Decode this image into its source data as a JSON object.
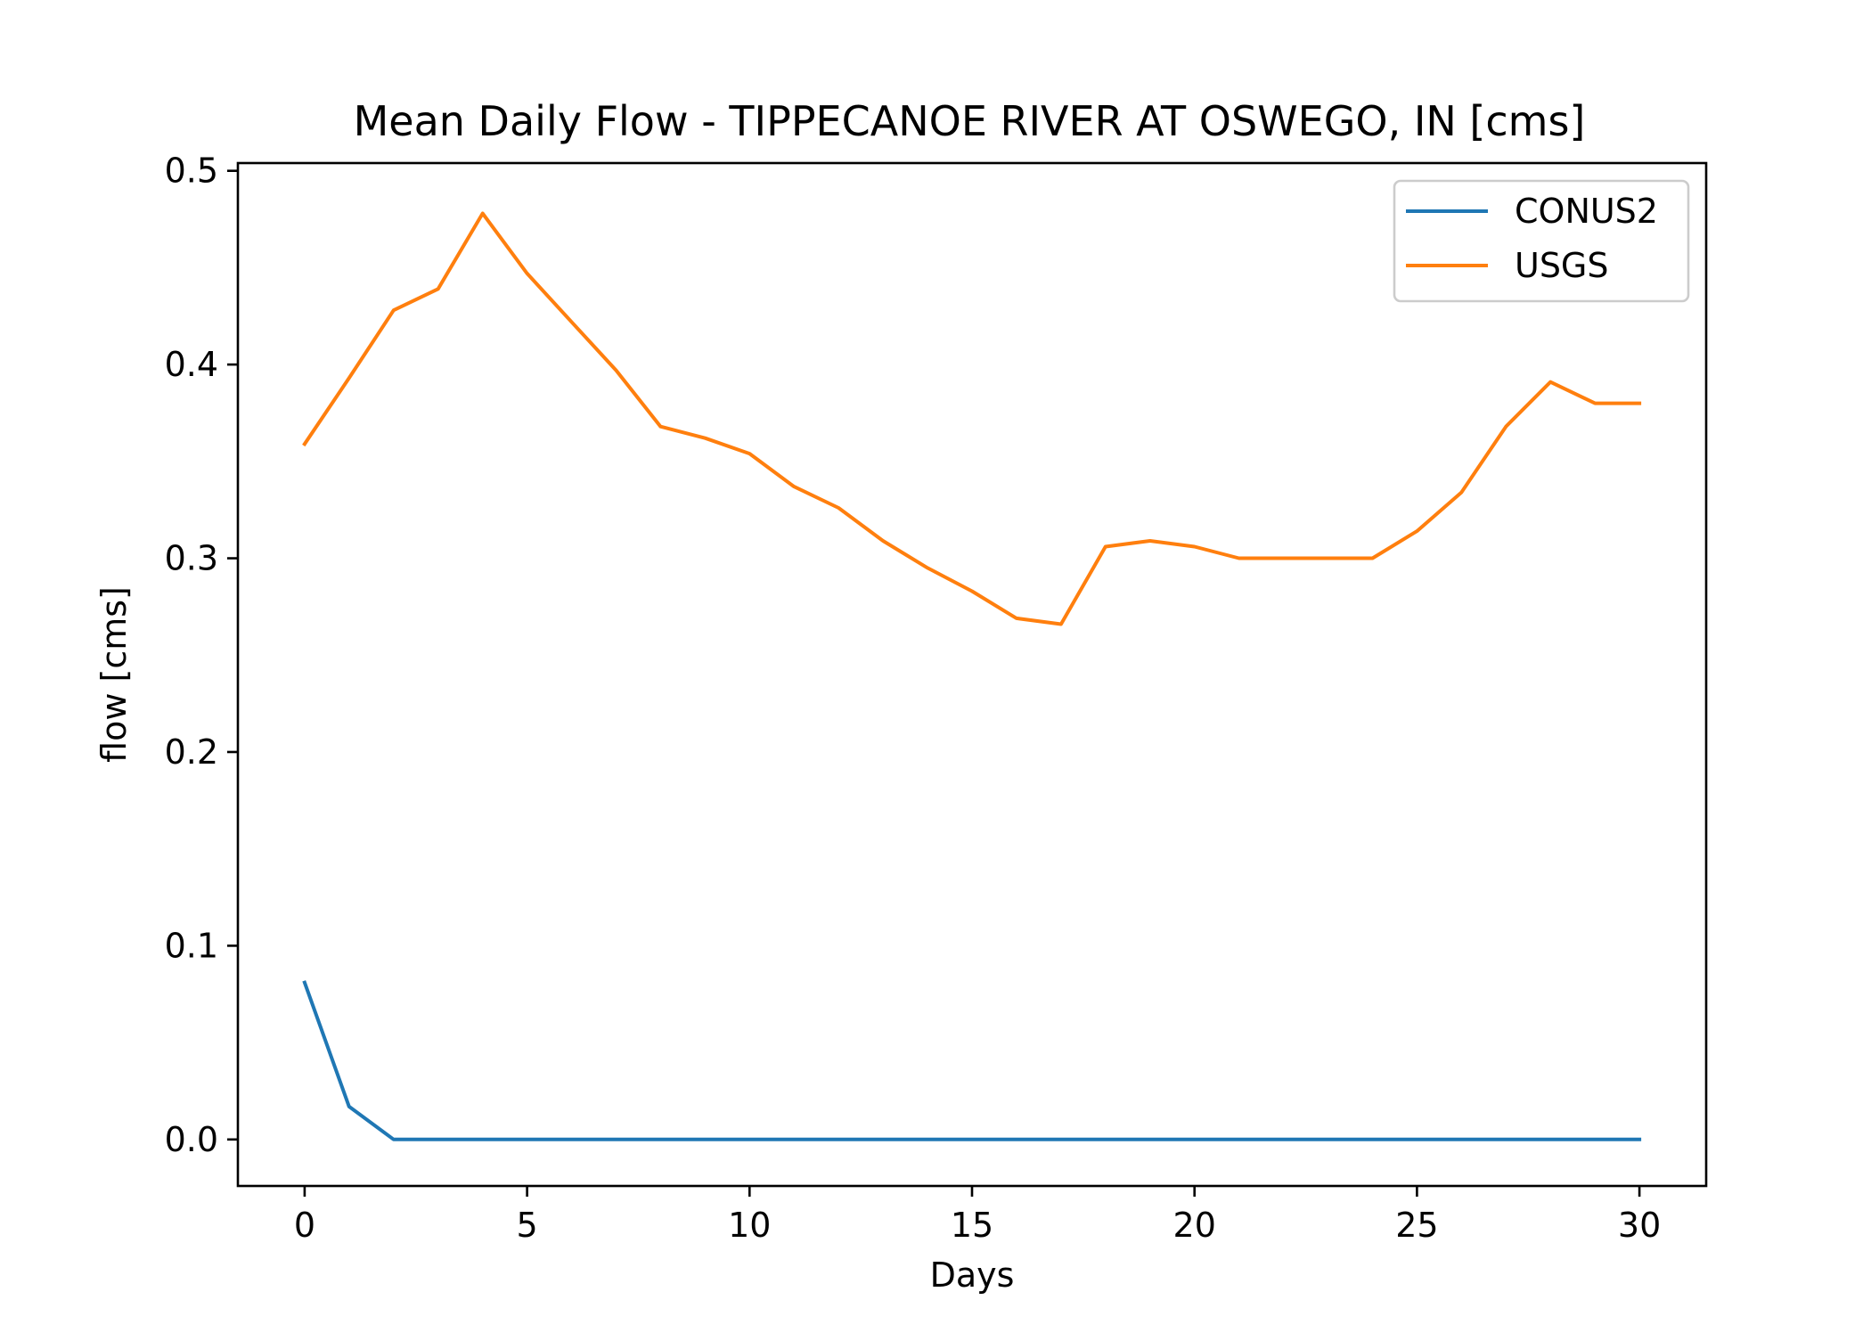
{
  "chart_data": {
    "type": "line",
    "title": "Mean Daily Flow - TIPPECANOE RIVER AT OSWEGO, IN [cms]",
    "xlabel": "Days",
    "ylabel": "flow [cms]",
    "xlim": [
      -1.5,
      31.5
    ],
    "ylim": [
      -0.024,
      0.504
    ],
    "xticks": [
      0,
      5,
      10,
      15,
      20,
      25,
      30
    ],
    "xtick_labels": [
      "0",
      "5",
      "10",
      "15",
      "20",
      "25",
      "30"
    ],
    "yticks": [
      0.0,
      0.1,
      0.2,
      0.3,
      0.4,
      0.5
    ],
    "ytick_labels": [
      "0.0",
      "0.1",
      "0.2",
      "0.3",
      "0.4",
      "0.5"
    ],
    "grid": false,
    "legend": "top-right",
    "x": [
      0,
      1,
      2,
      3,
      4,
      5,
      6,
      7,
      8,
      9,
      10,
      11,
      12,
      13,
      14,
      15,
      16,
      17,
      18,
      19,
      20,
      21,
      22,
      23,
      24,
      25,
      26,
      27,
      28,
      29,
      30
    ],
    "series": [
      {
        "name": "CONUS2",
        "color": "#1f77b4",
        "values": [
          0.081,
          0.017,
          0.0,
          0.0,
          0.0,
          0.0,
          0.0,
          0.0,
          0.0,
          0.0,
          0.0,
          0.0,
          0.0,
          0.0,
          0.0,
          0.0,
          0.0,
          0.0,
          0.0,
          0.0,
          0.0,
          0.0,
          0.0,
          0.0,
          0.0,
          0.0,
          0.0,
          0.0,
          0.0,
          0.0,
          0.0
        ]
      },
      {
        "name": "USGS",
        "color": "#ff7f0e",
        "values": [
          0.359,
          0.393,
          0.428,
          0.439,
          0.478,
          0.447,
          0.422,
          0.397,
          0.368,
          0.362,
          0.354,
          0.337,
          0.326,
          0.309,
          0.295,
          0.283,
          0.269,
          0.266,
          0.306,
          0.309,
          0.306,
          0.3,
          0.3,
          0.3,
          0.3,
          0.314,
          0.334,
          0.368,
          0.391,
          0.38,
          0.38
        ]
      }
    ]
  }
}
